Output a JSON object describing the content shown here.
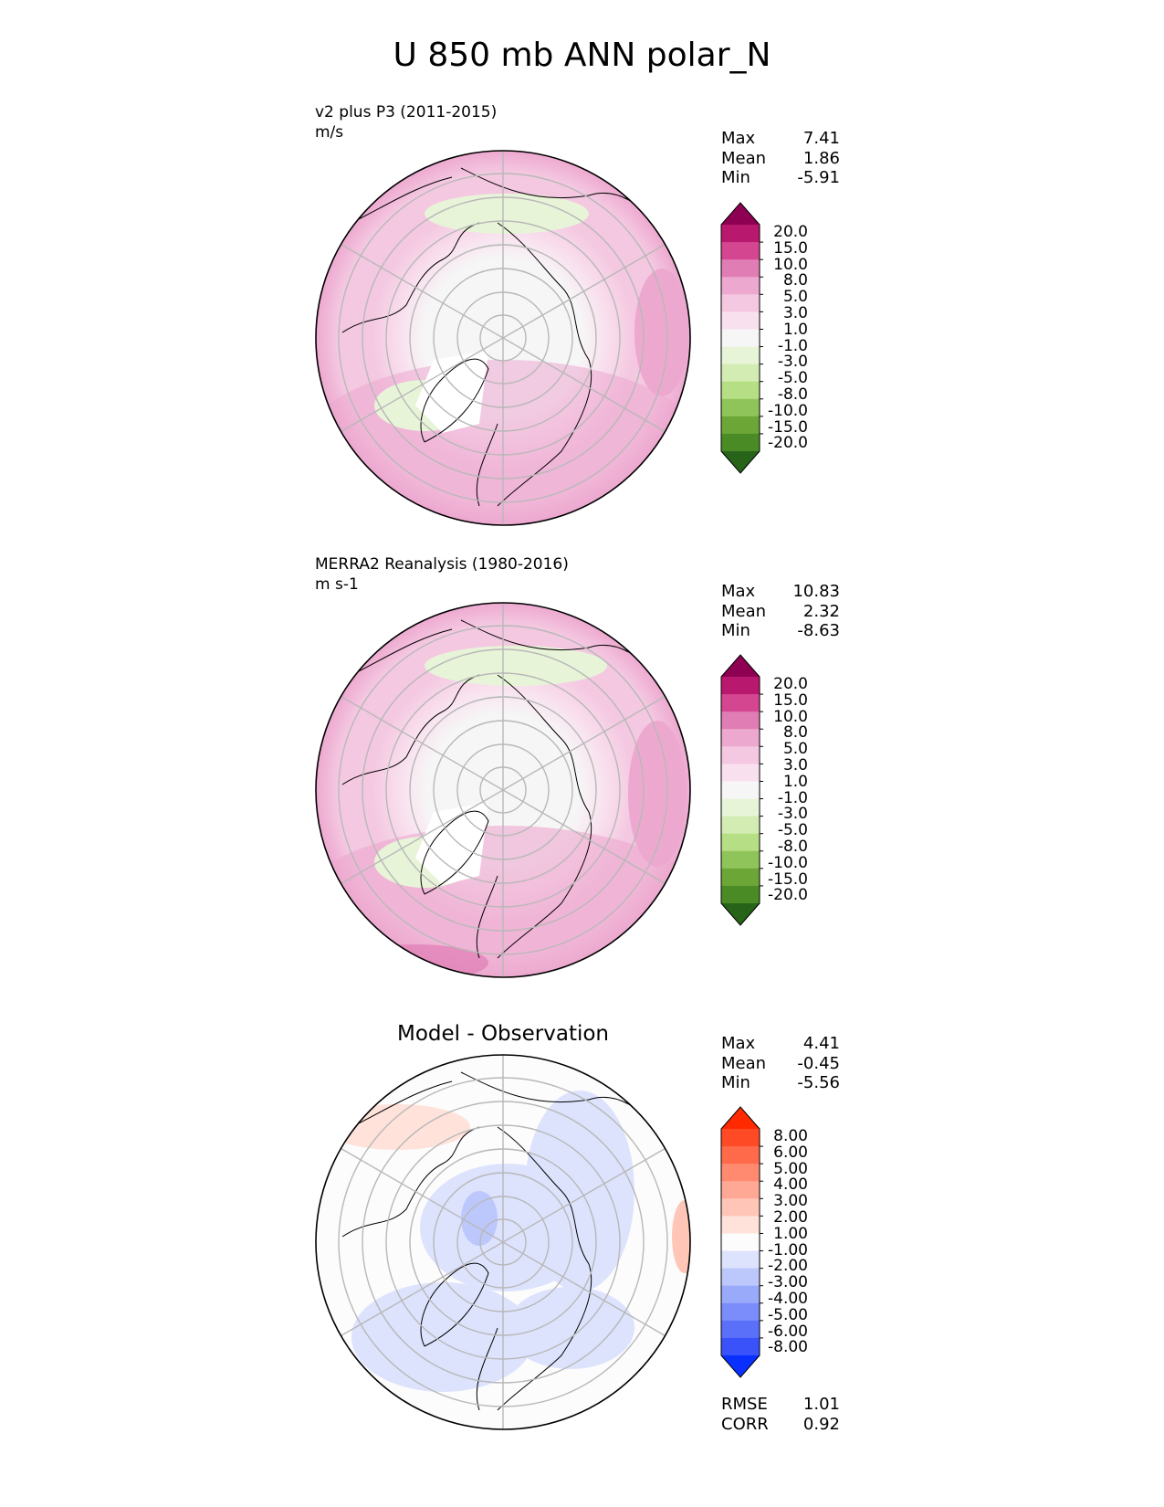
{
  "figure": {
    "title": "U 850 mb ANN polar_N"
  },
  "panels": [
    {
      "id": "test",
      "title_lines": [
        "v2 plus P3 (2011-2015)",
        "m/s"
      ],
      "stats": [
        {
          "label": "Max",
          "value": "7.41"
        },
        {
          "label": "Mean",
          "value": "1.86"
        },
        {
          "label": "Min",
          "value": "-5.91"
        }
      ],
      "colorbar": {
        "labels": [
          "20.0",
          "15.0",
          "10.0",
          "8.0",
          "5.0",
          "3.0",
          "1.0",
          "-1.0",
          "-3.0",
          "-5.0",
          "-8.0",
          "-10.0",
          "-15.0",
          "-20.0"
        ],
        "colors": [
          "#8e0152",
          "#b9186f",
          "#d4468f",
          "#e07db5",
          "#eda8cf",
          "#f4c8e1",
          "#f9e0ee",
          "#f6f6f6",
          "#e8f4d8",
          "#d3ecb3",
          "#b5de85",
          "#8fc45a",
          "#6ba637",
          "#4b8b26",
          "#276419"
        ]
      }
    },
    {
      "id": "reference",
      "title_lines": [
        "MERRA2 Reanalysis (1980-2016)",
        "m s-1"
      ],
      "stats": [
        {
          "label": "Max",
          "value": "10.83"
        },
        {
          "label": "Mean",
          "value": "2.32"
        },
        {
          "label": "Min",
          "value": "-8.63"
        }
      ],
      "colorbar": {
        "labels": [
          "20.0",
          "15.0",
          "10.0",
          "8.0",
          "5.0",
          "3.0",
          "1.0",
          "-1.0",
          "-3.0",
          "-5.0",
          "-8.0",
          "-10.0",
          "-15.0",
          "-20.0"
        ],
        "colors": [
          "#8e0152",
          "#b9186f",
          "#d4468f",
          "#e07db5",
          "#eda8cf",
          "#f4c8e1",
          "#f9e0ee",
          "#f6f6f6",
          "#e8f4d8",
          "#d3ecb3",
          "#b5de85",
          "#8fc45a",
          "#6ba637",
          "#4b8b26",
          "#276419"
        ]
      }
    },
    {
      "id": "diff",
      "title_lines": [
        "Model - Observation"
      ],
      "stats": [
        {
          "label": "Max",
          "value": "4.41"
        },
        {
          "label": "Mean",
          "value": "-0.45"
        },
        {
          "label": "Min",
          "value": "-5.56"
        }
      ],
      "colorbar": {
        "labels": [
          "8.00",
          "6.00",
          "5.00",
          "4.00",
          "3.00",
          "2.00",
          "1.00",
          "-1.00",
          "-2.00",
          "-3.00",
          "-4.00",
          "-5.00",
          "-6.00",
          "-8.00"
        ],
        "colors": [
          "#ff2a00",
          "#ff4a26",
          "#ff6a4b",
          "#ff8a70",
          "#ffa896",
          "#ffc6b8",
          "#ffe2da",
          "#fcfcfc",
          "#dde3fd",
          "#bcc8fc",
          "#9aaafb",
          "#7a8dfa",
          "#5b70f9",
          "#3a52fa",
          "#0a30ff"
        ]
      },
      "footer_stats": [
        {
          "label": "RMSE",
          "value": "1.01"
        },
        {
          "label": "CORR",
          "value": "0.92"
        }
      ]
    }
  ]
}
